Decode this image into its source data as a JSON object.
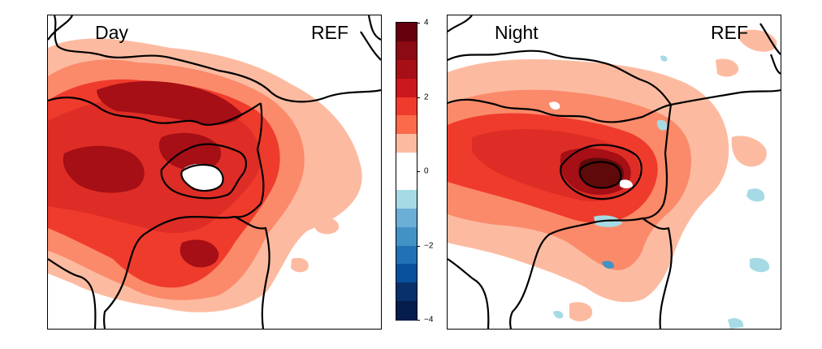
{
  "panels": {
    "day": {
      "label": "Day",
      "scenario": "REF"
    },
    "night": {
      "label": "Night",
      "scenario": "REF"
    }
  },
  "colorbar": {
    "range": [
      -4,
      4
    ],
    "tick_labels": [
      "4",
      "2",
      "0",
      "−2",
      "−4"
    ],
    "tick_values": [
      4,
      2,
      0,
      -2,
      -4
    ],
    "colors": [
      "#67000d",
      "#8b0a14",
      "#a50f15",
      "#cb181d",
      "#ef3b2c",
      "#fb6a4a",
      "#fcbba1",
      "#ffffff",
      "#ffffff",
      "#a6dbe5",
      "#6baed6",
      "#4292c6",
      "#2171b5",
      "#08519c",
      "#08306b",
      "#041d4a"
    ]
  },
  "palette": {
    "light_red": "#fcbba1",
    "salmon": "#fb8a6a",
    "red": "#ef3b2c",
    "mid_red": "#de2d26",
    "dark_red": "#a50f15",
    "darkest_red": "#5e0a0a",
    "light_blue": "#a6dbe5",
    "blue": "#4292c6"
  }
}
